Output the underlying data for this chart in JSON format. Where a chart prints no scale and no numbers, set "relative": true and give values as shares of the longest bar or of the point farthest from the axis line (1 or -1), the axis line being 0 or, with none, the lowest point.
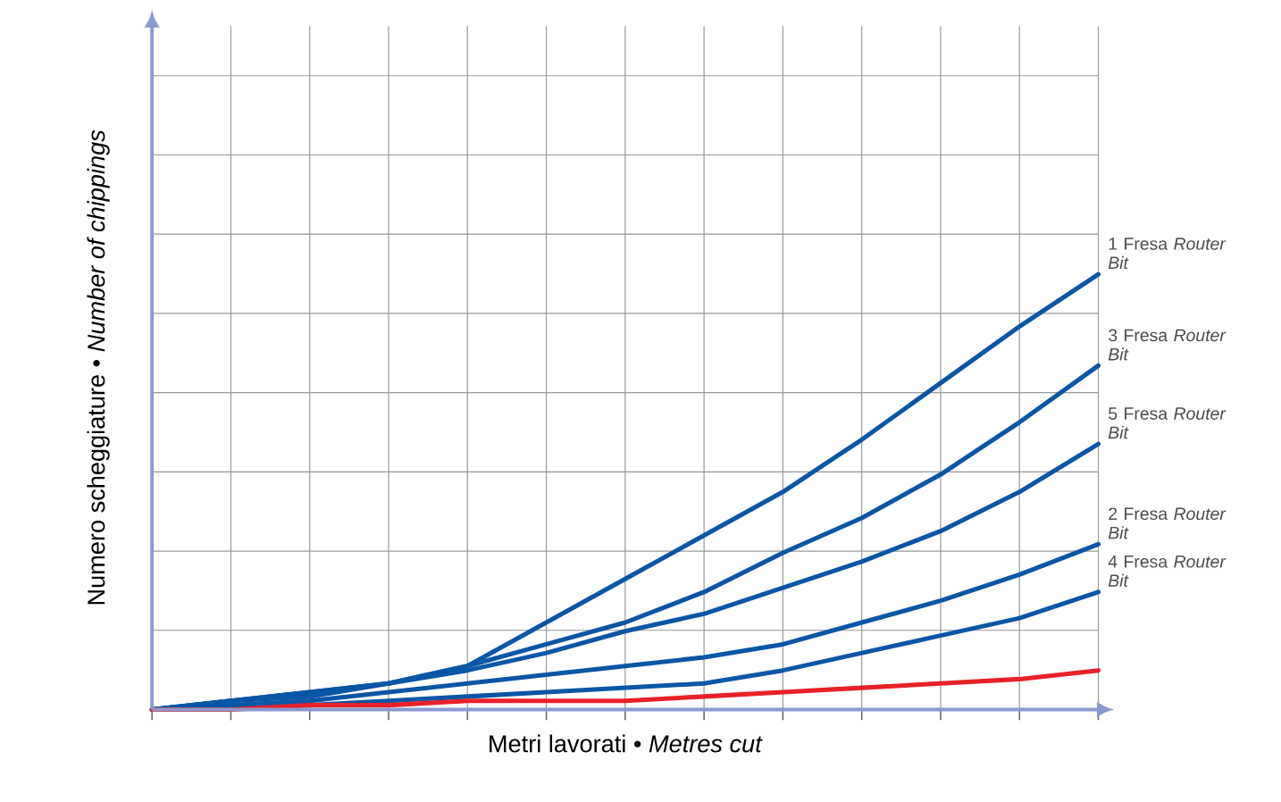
{
  "chart_data": {
    "type": "line",
    "relative": true,
    "xlabel": "Metri lavorati • *Metres cut*",
    "ylabel": "Numero scheggiature • *Number of chippings*",
    "grid": true,
    "categories": [
      null,
      null,
      null,
      null,
      null,
      null,
      null,
      null,
      null,
      null,
      null,
      null,
      null
    ],
    "series": [
      {
        "name": "1 Fresa *Router Bit*",
        "color": "#0a56a5",
        "values": [
          0,
          0.02,
          0.04,
          0.06,
          0.1,
          0.2,
          0.3,
          0.4,
          0.5,
          0.62,
          0.75,
          0.88,
          1
        ]
      },
      {
        "name": "3 Fresa *Router Bit*",
        "color": "#0a56a5",
        "values": [
          0,
          0.02,
          0.04,
          0.06,
          0.1,
          0.15,
          0.2,
          0.27,
          0.36,
          0.44,
          0.54,
          0.66,
          0.79
        ]
      },
      {
        "name": "5 Fresa *Router Bit*",
        "color": "#0a56a5",
        "values": [
          0,
          0.02,
          0.03,
          0.06,
          0.09,
          0.13,
          0.18,
          0.22,
          0.28,
          0.34,
          0.41,
          0.5,
          0.61
        ]
      },
      {
        "name": "2 Fresa *Router Bit*",
        "color": "#0a56a5",
        "values": [
          0,
          0.01,
          0.02,
          0.04,
          0.06,
          0.08,
          0.1,
          0.12,
          0.15,
          0.2,
          0.25,
          0.31,
          0.38
        ]
      },
      {
        "name": "4 Fresa *Router Bit*",
        "color": "#0a56a5",
        "values": [
          0,
          0.01,
          0.01,
          0.02,
          0.03,
          0.04,
          0.05,
          0.06,
          0.09,
          0.13,
          0.17,
          0.21,
          0.27
        ]
      },
      {
        "color": "#e8202a",
        "values": [
          0,
          0,
          0.01,
          0.01,
          0.02,
          0.02,
          0.02,
          0.03,
          0.04,
          0.05,
          0.06,
          0.07,
          0.09
        ]
      }
    ]
  }
}
